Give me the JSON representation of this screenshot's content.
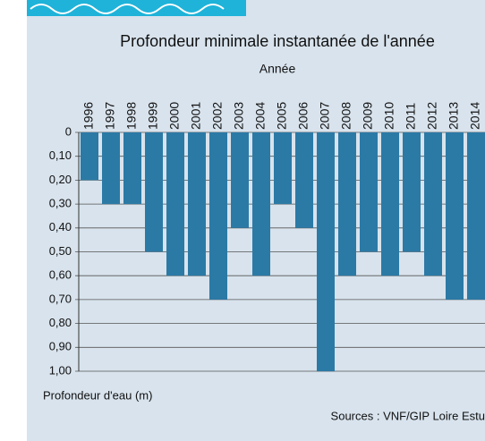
{
  "chart_data": {
    "type": "bar",
    "title": "Profondeur minimale instantanée de l'année",
    "x_label": "Année",
    "y_label": "Profondeur d'eau (m)",
    "source": "Sources : VNF/GIP Loire Estu",
    "categories": [
      "1996",
      "1997",
      "1998",
      "1999",
      "2000",
      "2001",
      "2002",
      "2003",
      "2004",
      "2005",
      "2006",
      "2007",
      "2008",
      "2009",
      "2010",
      "2011",
      "2012",
      "2013",
      "2014"
    ],
    "values": [
      0.2,
      0.3,
      0.3,
      0.5,
      0.6,
      0.6,
      0.7,
      0.4,
      0.6,
      0.3,
      0.4,
      1.0,
      0.6,
      0.5,
      0.6,
      0.5,
      0.6,
      0.7,
      0.7
    ],
    "color": "#2b7aa6",
    "ylim": [
      0,
      1
    ],
    "y_inverted": true,
    "yticks": [
      0,
      {
        "value": 0.1,
        "label": "0,10"
      },
      {
        "value": 0.2,
        "label": "0,20"
      },
      {
        "value": 0.3,
        "label": "0,30"
      },
      {
        "value": 0.4,
        "label": "0,40"
      },
      {
        "value": 0.5,
        "label": "0,50"
      },
      {
        "value": 0.6,
        "label": "0,60"
      },
      {
        "value": 0.7,
        "label": "0,70"
      },
      {
        "value": 0.8,
        "label": "0,80"
      },
      {
        "value": 0.9,
        "label": "0,90"
      },
      {
        "value": 1,
        "label": "1,00"
      }
    ],
    "grid": true
  }
}
